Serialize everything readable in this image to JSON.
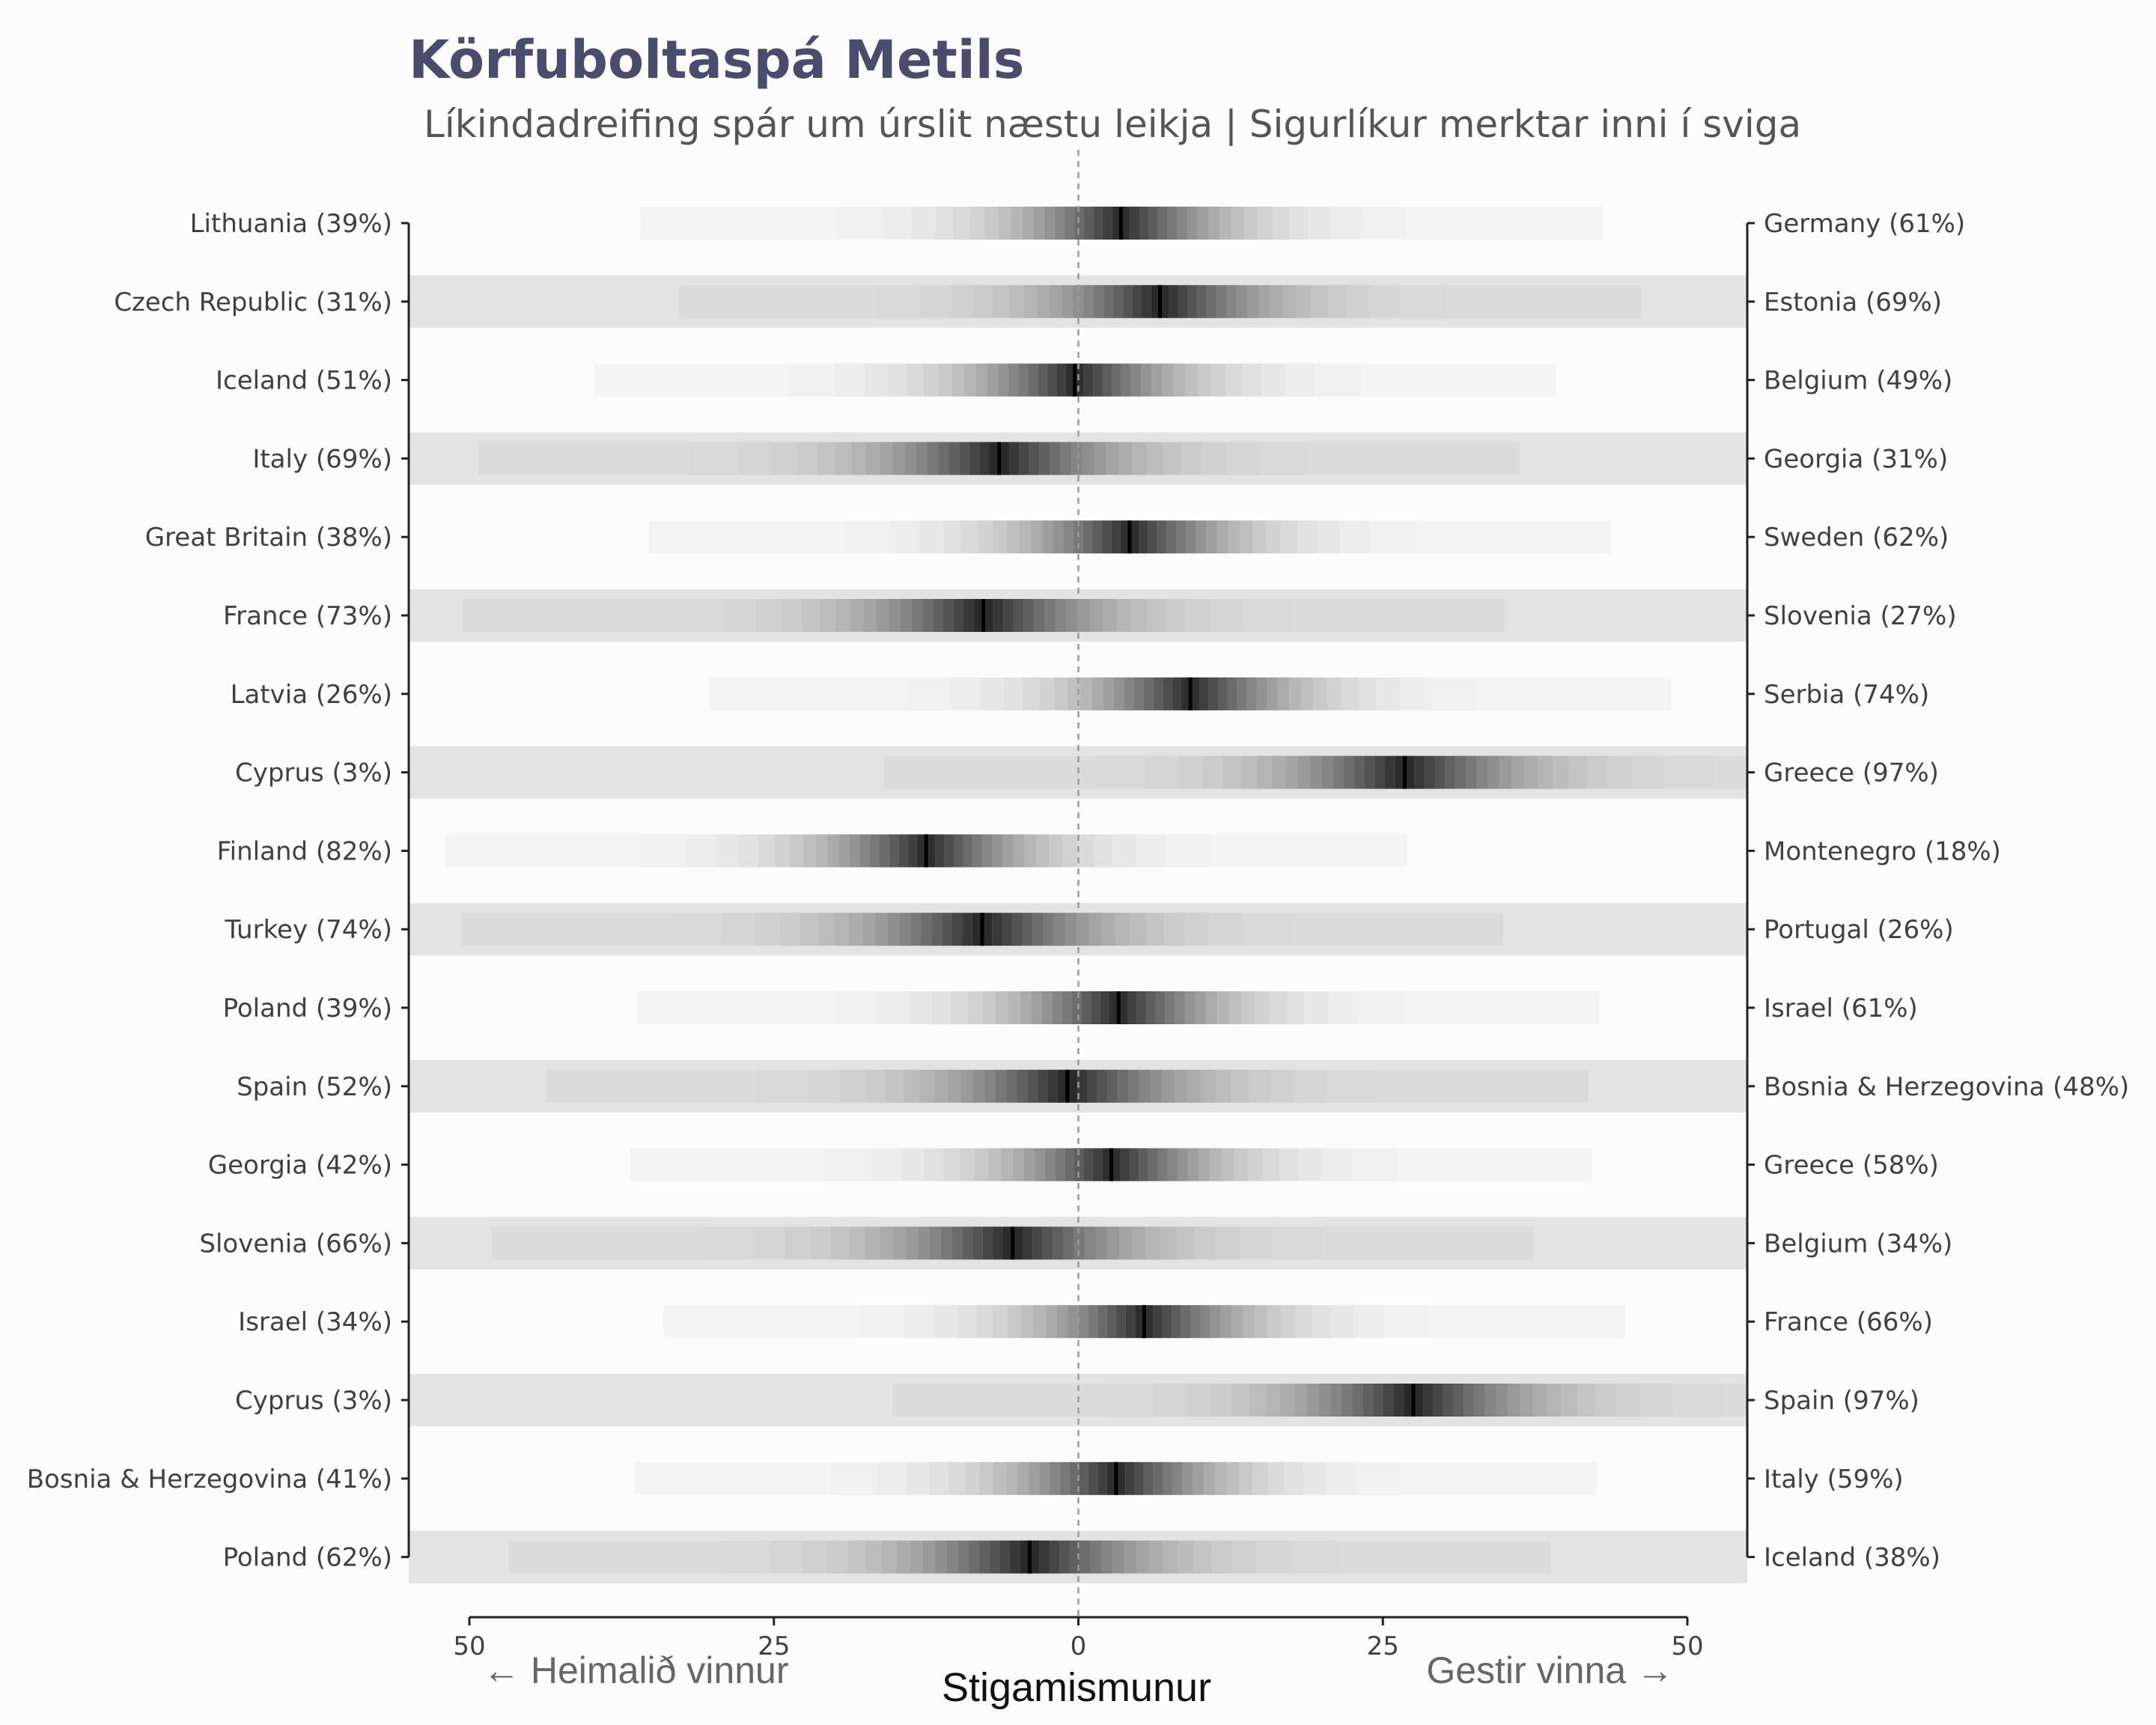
{
  "chart_data": {
    "type": "heatmap",
    "title": "Körfuboltaspá Metils",
    "subtitle": "Líkindadreifing spár um úrslit næstu leikja | Sigurlíkur merktar inni í sviga",
    "xlabel": "Stigamismunur",
    "direction_labels": {
      "left": "← Heimalið vinnur",
      "right": "Gestir vinna →"
    },
    "x_ticks": [
      "50",
      "25",
      "0",
      "25",
      "50"
    ],
    "x_tick_values": [
      -50,
      -25,
      0,
      25,
      50
    ],
    "xlim": [
      -50,
      50
    ],
    "reference_line": 0,
    "grid": false,
    "games": [
      {
        "home": "Lithuania (39%)",
        "away": "Germany (61%)",
        "median": 3.5,
        "spread": 12
      },
      {
        "home": "Czech Republic (31%)",
        "away": "Estonia (69%)",
        "median": 6.7,
        "spread": 12
      },
      {
        "home": "Iceland (51%)",
        "away": "Belgium (49%)",
        "median": -0.3,
        "spread": 12
      },
      {
        "home": "Italy (69%)",
        "away": "Georgia (31%)",
        "median": -6.5,
        "spread": 13
      },
      {
        "home": "Great Britain (38%)",
        "away": "Sweden (62%)",
        "median": 4.2,
        "spread": 12
      },
      {
        "home": "France (73%)",
        "away": "Slovenia (27%)",
        "median": -7.8,
        "spread": 13
      },
      {
        "home": "Latvia (26%)",
        "away": "Serbia (74%)",
        "median": 9.2,
        "spread": 12
      },
      {
        "home": "Cyprus (3%)",
        "away": "Greece (97%)",
        "median": 26.8,
        "spread": 13
      },
      {
        "home": "Finland (82%)",
        "away": "Montenegro (18%)",
        "median": -12.5,
        "spread": 12
      },
      {
        "home": "Turkey (74%)",
        "away": "Portugal (26%)",
        "median": -7.9,
        "spread": 13
      },
      {
        "home": "Poland (39%)",
        "away": "Israel (61%)",
        "median": 3.3,
        "spread": 12
      },
      {
        "home": "Spain (52%)",
        "away": "Bosnia & Herzegovina (48%)",
        "median": -0.9,
        "spread": 13
      },
      {
        "home": "Georgia (42%)",
        "away": "Greece (58%)",
        "median": 2.7,
        "spread": 12
      },
      {
        "home": "Slovenia (66%)",
        "away": "Belgium (34%)",
        "median": -5.4,
        "spread": 13
      },
      {
        "home": "Israel (34%)",
        "away": "France (66%)",
        "median": 5.4,
        "spread": 12
      },
      {
        "home": "Cyprus (3%)",
        "away": "Spain (97%)",
        "median": 27.5,
        "spread": 13
      },
      {
        "home": "Bosnia & Herzegovina (41%)",
        "away": "Italy (59%)",
        "median": 3.1,
        "spread": 12
      },
      {
        "home": "Poland (62%)",
        "away": "Iceland (38%)",
        "median": -4.0,
        "spread": 13
      }
    ],
    "colors": {
      "title": "#484d6d",
      "band": "#e3e3e3",
      "background": "#fcfcfc",
      "mark": "#000000"
    }
  }
}
